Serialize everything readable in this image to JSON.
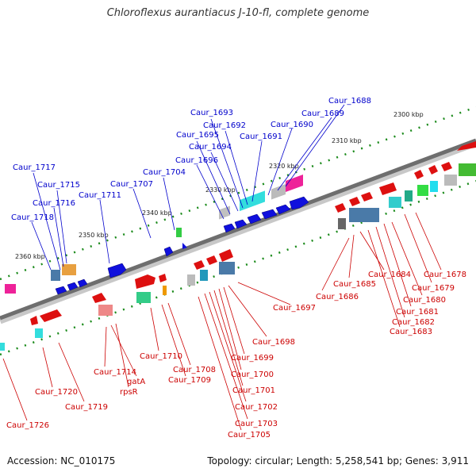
{
  "title": "Chloroflexus aurantiacus J-10-fl, complete genome",
  "footer": {
    "accession": "Accession: NC_010175",
    "summary": "Topology: circular; Length: 5,258,541 bp; Genes: 3,911"
  },
  "colors": {
    "forward_strand_labels": "#0000cc",
    "reverse_strand_labels": "#cc0000",
    "backbone": "#808080",
    "ticks": "#1a8a1a",
    "forward_genes": "#0000ee",
    "reverse_genes": "#ee0000"
  },
  "scale_labels": [
    "2300 kbp",
    "2310 kbp",
    "2320 kbp",
    "2330 kbp",
    "2340 kbp",
    "2350 kbp",
    "2360 kbp"
  ],
  "forward_labels": [
    "Caur_1688",
    "Caur_1689",
    "Caur_1690",
    "Caur_1691",
    "Caur_1692",
    "Caur_1693",
    "Caur_1694",
    "Caur_1695",
    "Caur_1696",
    "Caur_1704",
    "Caur_1707",
    "Caur_1711",
    "Caur_1715",
    "Caur_1716",
    "Caur_1717",
    "Caur_1718"
  ],
  "reverse_labels": [
    "Caur_1678",
    "Caur_1679",
    "Caur_1680",
    "Caur_1681",
    "Caur_1682",
    "Caur_1683",
    "Caur_1684",
    "Caur_1685",
    "Caur_1686",
    "Caur_1697",
    "Caur_1698",
    "Caur_1699",
    "Caur_1700",
    "Caur_1701",
    "Caur_1702",
    "Caur_1703",
    "Caur_1705",
    "Caur_1708",
    "Caur_1709",
    "Caur_1710",
    "Caur_1714",
    "gatA",
    "rpsR",
    "Caur_1719",
    "Caur_1720",
    "Caur_1726"
  ]
}
